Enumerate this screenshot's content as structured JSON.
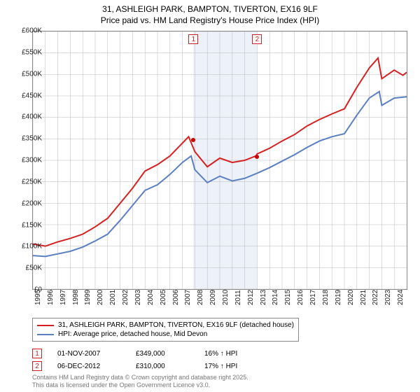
{
  "title_line1": "31, ASHLEIGH PARK, BAMPTON, TIVERTON, EX16 9LF",
  "title_line2": "Price paid vs. HM Land Registry's House Price Index (HPI)",
  "chart": {
    "type": "line",
    "x_min_year": 1995,
    "x_max_year": 2025,
    "y_min": 0,
    "y_max": 600000,
    "y_tick_step": 50000,
    "y_ticks": [
      "£0",
      "£50K",
      "£100K",
      "£150K",
      "£200K",
      "£250K",
      "£300K",
      "£350K",
      "£400K",
      "£450K",
      "£500K",
      "£550K",
      "£600K"
    ],
    "x_ticks": [
      "1995",
      "1996",
      "1997",
      "1998",
      "1999",
      "2000",
      "2001",
      "2002",
      "2003",
      "2004",
      "2005",
      "2006",
      "2007",
      "2008",
      "2009",
      "2010",
      "2011",
      "2012",
      "2013",
      "2014",
      "2015",
      "2016",
      "2017",
      "2018",
      "2019",
      "2020",
      "2021",
      "2022",
      "2023",
      "2024"
    ],
    "grid_color": "#b8b8b8",
    "highlight_color": "#d6e0f5",
    "series": [
      {
        "name": "property",
        "color": "#d62020",
        "width": 2,
        "label": "31, ASHLEIGH PARK, BAMPTON, TIVERTON, EX16 9LF (detached house)",
        "points": [
          [
            1995,
            105000
          ],
          [
            1996,
            100000
          ],
          [
            1997,
            110000
          ],
          [
            1998,
            118000
          ],
          [
            1999,
            128000
          ],
          [
            2000,
            145000
          ],
          [
            2001,
            165000
          ],
          [
            2002,
            200000
          ],
          [
            2003,
            235000
          ],
          [
            2004,
            275000
          ],
          [
            2005,
            290000
          ],
          [
            2006,
            310000
          ],
          [
            2007,
            340000
          ],
          [
            2007.5,
            355000
          ],
          [
            2008,
            320000
          ],
          [
            2009,
            285000
          ],
          [
            2010,
            305000
          ],
          [
            2011,
            295000
          ],
          [
            2012,
            300000
          ],
          [
            2012.9,
            310000
          ],
          [
            2013,
            315000
          ],
          [
            2014,
            328000
          ],
          [
            2015,
            345000
          ],
          [
            2016,
            360000
          ],
          [
            2017,
            380000
          ],
          [
            2018,
            395000
          ],
          [
            2019,
            408000
          ],
          [
            2020,
            420000
          ],
          [
            2021,
            470000
          ],
          [
            2022,
            515000
          ],
          [
            2022.7,
            538000
          ],
          [
            2023,
            490000
          ],
          [
            2024,
            510000
          ],
          [
            2024.7,
            498000
          ],
          [
            2025,
            505000
          ]
        ]
      },
      {
        "name": "hpi",
        "color": "#5a7fc2",
        "width": 2,
        "label": "HPI: Average price, detached house, Mid Devon",
        "points": [
          [
            1995,
            78000
          ],
          [
            1996,
            76000
          ],
          [
            1997,
            82000
          ],
          [
            1998,
            88000
          ],
          [
            1999,
            98000
          ],
          [
            2000,
            112000
          ],
          [
            2001,
            128000
          ],
          [
            2002,
            160000
          ],
          [
            2003,
            195000
          ],
          [
            2004,
            230000
          ],
          [
            2005,
            243000
          ],
          [
            2006,
            267000
          ],
          [
            2007,
            295000
          ],
          [
            2007.7,
            310000
          ],
          [
            2008,
            278000
          ],
          [
            2009,
            248000
          ],
          [
            2010,
            263000
          ],
          [
            2011,
            252000
          ],
          [
            2012,
            258000
          ],
          [
            2013,
            270000
          ],
          [
            2014,
            283000
          ],
          [
            2015,
            298000
          ],
          [
            2016,
            313000
          ],
          [
            2017,
            330000
          ],
          [
            2018,
            345000
          ],
          [
            2019,
            355000
          ],
          [
            2020,
            362000
          ],
          [
            2021,
            405000
          ],
          [
            2022,
            445000
          ],
          [
            2022.8,
            460000
          ],
          [
            2023,
            428000
          ],
          [
            2024,
            445000
          ],
          [
            2025,
            448000
          ]
        ]
      }
    ],
    "sale_markers": [
      {
        "n": "1",
        "year": 2007.84,
        "price": 349000
      },
      {
        "n": "2",
        "year": 2012.93,
        "price": 310000
      }
    ]
  },
  "sales": [
    {
      "n": "1",
      "date": "01-NOV-2007",
      "price": "£349,000",
      "delta": "16% ↑ HPI"
    },
    {
      "n": "2",
      "date": "06-DEC-2012",
      "price": "£310,000",
      "delta": "17% ↑ HPI"
    }
  ],
  "footer_line1": "Contains HM Land Registry data © Crown copyright and database right 2025.",
  "footer_line2": "This data is licensed under the Open Government Licence v3.0."
}
